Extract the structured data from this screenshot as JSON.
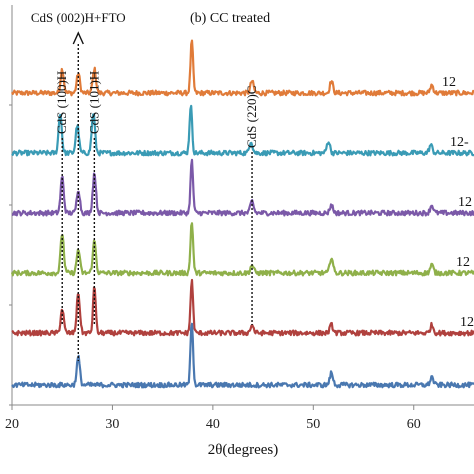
{
  "chart_data": {
    "type": "line",
    "title": "(b) CC treated",
    "xlabel": "2θ(degrees)",
    "ylabel": "",
    "xlim": [
      20,
      66
    ],
    "xticks": [
      20,
      30,
      40,
      50,
      60
    ],
    "xtick_labels": [
      "20",
      "30",
      "40",
      "50",
      "60"
    ],
    "grid": false,
    "series_label_fragments": [
      "12",
      "12-",
      "12",
      "12",
      "12"
    ],
    "annotations": [
      {
        "text": "CdS (002)H+FTO",
        "x": 26.6,
        "arrow": true
      },
      {
        "text": "CdS (100)H",
        "x": 25.0
      },
      {
        "text": "CdS (101)H",
        "x": 28.2
      },
      {
        "text": "CdS (220)C",
        "x": 43.9
      }
    ],
    "series": [
      {
        "color": "#e07b39",
        "baseline": 0.78,
        "peaks": [
          {
            "x": 25.0,
            "h": 0.06
          },
          {
            "x": 26.6,
            "h": 0.05
          },
          {
            "x": 28.2,
            "h": 0.06
          },
          {
            "x": 37.9,
            "h": 0.13
          },
          {
            "x": 43.9,
            "h": 0.03
          },
          {
            "x": 51.8,
            "h": 0.03
          },
          {
            "x": 61.8,
            "h": 0.02
          }
        ]
      },
      {
        "color": "#3a9bb5",
        "baseline": 0.63,
        "peaks": [
          {
            "x": 24.8,
            "h": 0.1
          },
          {
            "x": 26.5,
            "h": 0.07
          },
          {
            "x": 28.1,
            "h": 0.1
          },
          {
            "x": 37.8,
            "h": 0.12
          },
          {
            "x": 43.8,
            "h": 0.03
          },
          {
            "x": 51.5,
            "h": 0.03
          },
          {
            "x": 61.7,
            "h": 0.02
          }
        ]
      },
      {
        "color": "#7b59a8",
        "baseline": 0.48,
        "peaks": [
          {
            "x": 25.0,
            "h": 0.09
          },
          {
            "x": 26.6,
            "h": 0.06
          },
          {
            "x": 28.2,
            "h": 0.1
          },
          {
            "x": 37.9,
            "h": 0.13
          },
          {
            "x": 43.9,
            "h": 0.03
          },
          {
            "x": 51.8,
            "h": 0.02
          },
          {
            "x": 61.8,
            "h": 0.02
          }
        ]
      },
      {
        "color": "#8fb04a",
        "baseline": 0.33,
        "peaks": [
          {
            "x": 25.0,
            "h": 0.1
          },
          {
            "x": 26.6,
            "h": 0.06
          },
          {
            "x": 28.2,
            "h": 0.08
          },
          {
            "x": 37.9,
            "h": 0.13
          },
          {
            "x": 43.9,
            "h": 0.02
          },
          {
            "x": 51.8,
            "h": 0.04
          },
          {
            "x": 61.8,
            "h": 0.02
          }
        ]
      },
      {
        "color": "#b0413e",
        "baseline": 0.18,
        "peaks": [
          {
            "x": 25.0,
            "h": 0.06
          },
          {
            "x": 26.6,
            "h": 0.1
          },
          {
            "x": 28.2,
            "h": 0.12
          },
          {
            "x": 37.9,
            "h": 0.13
          },
          {
            "x": 43.9,
            "h": 0.02
          },
          {
            "x": 51.8,
            "h": 0.02
          },
          {
            "x": 61.8,
            "h": 0.02
          }
        ]
      },
      {
        "color": "#4a78b0",
        "baseline": 0.05,
        "peaks": [
          {
            "x": 26.6,
            "h": 0.07
          },
          {
            "x": 37.9,
            "h": 0.16
          },
          {
            "x": 51.8,
            "h": 0.03
          },
          {
            "x": 61.8,
            "h": 0.02
          }
        ]
      }
    ]
  }
}
